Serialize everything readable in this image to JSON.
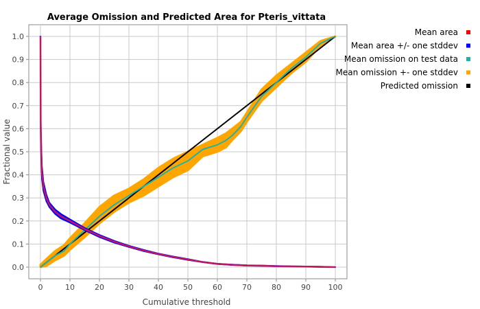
{
  "chart_data": {
    "type": "line",
    "title": "Average Omission and Predicted Area for Pteris_vittata",
    "xlabel": "Cumulative threshold",
    "ylabel": "Fractional value",
    "xlim": [
      0,
      100
    ],
    "ylim": [
      0,
      1.0
    ],
    "xticks": [
      0,
      10,
      20,
      30,
      40,
      50,
      60,
      70,
      80,
      90,
      100
    ],
    "yticks": [
      0.0,
      0.1,
      0.2,
      0.3,
      0.4,
      0.5,
      0.6,
      0.7,
      0.8,
      0.9,
      1.0
    ],
    "grid": true,
    "legend_position": "right",
    "series": [
      {
        "name": "Mean area",
        "color": "#ff0000",
        "x": [
          0,
          0.1,
          0.3,
          0.5,
          1,
          2,
          3,
          5,
          7,
          10,
          15,
          20,
          25,
          30,
          35,
          40,
          45,
          50,
          55,
          60,
          65,
          70,
          75,
          80,
          85,
          90,
          95,
          100
        ],
        "y": [
          1.0,
          0.6,
          0.48,
          0.41,
          0.35,
          0.3,
          0.27,
          0.24,
          0.22,
          0.2,
          0.165,
          0.135,
          0.11,
          0.09,
          0.072,
          0.057,
          0.044,
          0.033,
          0.022,
          0.014,
          0.01,
          0.007,
          0.006,
          0.004,
          0.003,
          0.002,
          0.001,
          0.0
        ]
      },
      {
        "name": "Mean area +/- one stddev",
        "color": "#0000ff",
        "x": [
          0,
          0.1,
          0.3,
          0.5,
          1,
          2,
          3,
          5,
          7,
          10,
          15,
          20,
          25,
          30,
          35,
          40,
          45,
          50,
          55,
          60,
          65,
          70,
          75,
          80,
          85,
          90,
          95,
          100
        ],
        "y_lower": [
          1.0,
          0.55,
          0.44,
          0.38,
          0.33,
          0.285,
          0.26,
          0.23,
          0.21,
          0.193,
          0.16,
          0.13,
          0.106,
          0.087,
          0.069,
          0.055,
          0.042,
          0.031,
          0.021,
          0.013,
          0.009,
          0.006,
          0.005,
          0.004,
          0.003,
          0.002,
          0.001,
          0.0
        ],
        "y_upper": [
          1.0,
          0.64,
          0.52,
          0.44,
          0.37,
          0.315,
          0.28,
          0.25,
          0.23,
          0.207,
          0.17,
          0.14,
          0.114,
          0.093,
          0.075,
          0.059,
          0.046,
          0.035,
          0.023,
          0.015,
          0.011,
          0.008,
          0.007,
          0.005,
          0.004,
          0.003,
          0.002,
          0.0
        ]
      },
      {
        "name": "Mean omission on test data",
        "color": "#20b2aa",
        "x": [
          0,
          2,
          5,
          8,
          10,
          15,
          20,
          25,
          30,
          35,
          40,
          45,
          50,
          55,
          60,
          63,
          65,
          68,
          70,
          75,
          80,
          85,
          90,
          95,
          100
        ],
        "y": [
          0.0,
          0.02,
          0.05,
          0.07,
          0.1,
          0.16,
          0.22,
          0.27,
          0.31,
          0.35,
          0.39,
          0.43,
          0.46,
          0.51,
          0.53,
          0.55,
          0.57,
          0.61,
          0.65,
          0.74,
          0.8,
          0.86,
          0.91,
          0.97,
          1.0
        ]
      },
      {
        "name": "Mean omission +- one stddev",
        "color": "#ffa500",
        "x": [
          0,
          2,
          5,
          8,
          10,
          15,
          20,
          25,
          30,
          35,
          40,
          45,
          50,
          55,
          60,
          63,
          65,
          68,
          70,
          75,
          80,
          85,
          90,
          95,
          100
        ],
        "y_lower": [
          0.0,
          0.005,
          0.03,
          0.05,
          0.075,
          0.13,
          0.19,
          0.24,
          0.28,
          0.31,
          0.35,
          0.39,
          0.42,
          0.48,
          0.5,
          0.52,
          0.55,
          0.59,
          0.63,
          0.72,
          0.78,
          0.84,
          0.89,
          0.96,
          1.0
        ],
        "y_upper": [
          0.01,
          0.035,
          0.07,
          0.095,
          0.125,
          0.19,
          0.26,
          0.31,
          0.34,
          0.38,
          0.43,
          0.47,
          0.5,
          0.53,
          0.56,
          0.58,
          0.6,
          0.63,
          0.67,
          0.77,
          0.83,
          0.88,
          0.93,
          0.98,
          1.0
        ]
      },
      {
        "name": "Predicted omission",
        "color": "#000000",
        "x": [
          0,
          100
        ],
        "y": [
          0,
          1.0
        ]
      }
    ]
  }
}
